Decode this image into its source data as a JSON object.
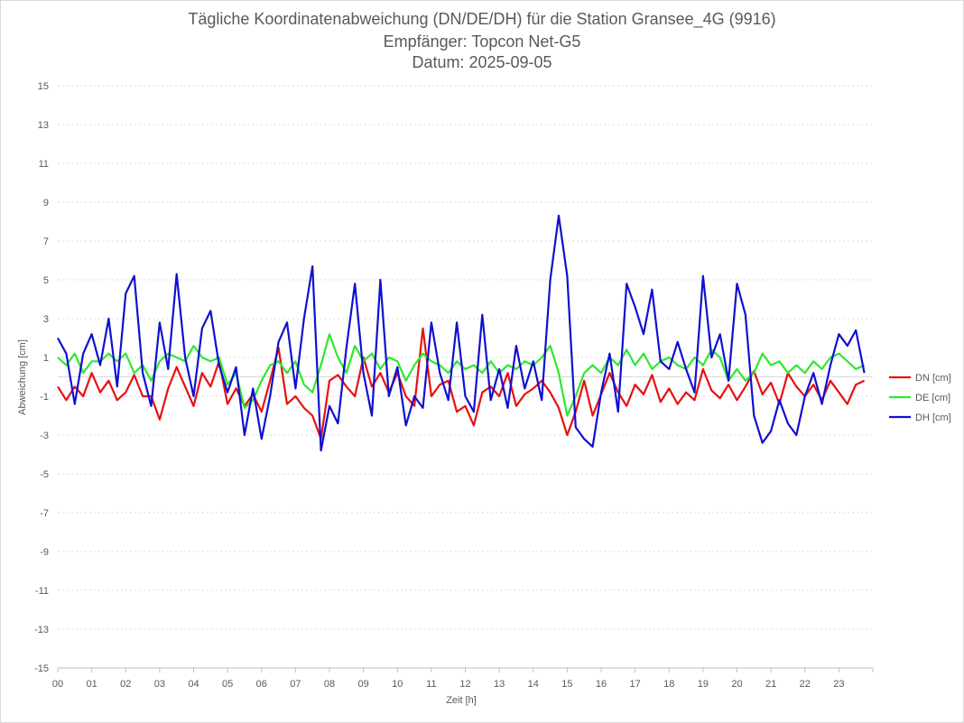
{
  "chart_data": {
    "type": "line",
    "title": "Tägliche Koordinatenabweichung (DN/DE/DH) für die Station Gransee_4G (9916)",
    "subtitle_1": "Empfänger: Topcon Net-G5",
    "subtitle_2": "Datum: 2025-09-05",
    "xlabel": "Zeit [h]",
    "ylabel": "Abweichung [cm]",
    "xlim": [
      0,
      24
    ],
    "ylim": [
      -15,
      15
    ],
    "x_tick_labels": [
      "00",
      "01",
      "02",
      "03",
      "04",
      "05",
      "06",
      "07",
      "08",
      "09",
      "10",
      "11",
      "12",
      "13",
      "14",
      "15",
      "16",
      "17",
      "18",
      "19",
      "20",
      "21",
      "22",
      "23"
    ],
    "y_ticks": [
      15,
      13,
      11,
      9,
      7,
      5,
      3,
      1,
      -1,
      -3,
      -5,
      -7,
      -9,
      -11,
      -13,
      -15
    ],
    "grid": true,
    "legend_position": "right",
    "series": [
      {
        "name": "DN [cm]",
        "color": "#e81010",
        "points": [
          [
            0,
            -0.5
          ],
          [
            0.25,
            -1.2
          ],
          [
            0.5,
            -0.5
          ],
          [
            0.75,
            -1.0
          ],
          [
            1.0,
            0.2
          ],
          [
            1.25,
            -0.8
          ],
          [
            1.5,
            -0.2
          ],
          [
            1.75,
            -1.2
          ],
          [
            2.0,
            -0.8
          ],
          [
            2.25,
            0.1
          ],
          [
            2.5,
            -1.0
          ],
          [
            2.75,
            -1.0
          ],
          [
            3.0,
            -2.2
          ],
          [
            3.25,
            -0.6
          ],
          [
            3.5,
            0.5
          ],
          [
            3.75,
            -0.5
          ],
          [
            4.0,
            -1.5
          ],
          [
            4.25,
            0.2
          ],
          [
            4.5,
            -0.5
          ],
          [
            4.75,
            0.8
          ],
          [
            5.0,
            -1.4
          ],
          [
            5.25,
            -0.6
          ],
          [
            5.5,
            -1.5
          ],
          [
            5.75,
            -0.9
          ],
          [
            6.0,
            -1.8
          ],
          [
            6.25,
            -0.2
          ],
          [
            6.5,
            1.5
          ],
          [
            6.75,
            -1.4
          ],
          [
            7.0,
            -1.0
          ],
          [
            7.25,
            -1.6
          ],
          [
            7.5,
            -2.0
          ],
          [
            7.75,
            -3.2
          ],
          [
            8.0,
            -0.2
          ],
          [
            8.25,
            0.1
          ],
          [
            8.5,
            -0.5
          ],
          [
            8.75,
            -1.0
          ],
          [
            9.0,
            1.0
          ],
          [
            9.25,
            -0.5
          ],
          [
            9.5,
            0.2
          ],
          [
            9.75,
            -0.8
          ],
          [
            10.0,
            0.2
          ],
          [
            10.25,
            -1.0
          ],
          [
            10.5,
            -1.5
          ],
          [
            10.75,
            2.5
          ],
          [
            11.0,
            -1.0
          ],
          [
            11.25,
            -0.4
          ],
          [
            11.5,
            -0.2
          ],
          [
            11.75,
            -1.8
          ],
          [
            12.0,
            -1.5
          ],
          [
            12.25,
            -2.5
          ],
          [
            12.5,
            -0.8
          ],
          [
            12.75,
            -0.5
          ],
          [
            13.0,
            -1.0
          ],
          [
            13.25,
            0.2
          ],
          [
            13.5,
            -1.5
          ],
          [
            13.75,
            -0.9
          ],
          [
            14.0,
            -0.6
          ],
          [
            14.25,
            -0.2
          ],
          [
            14.5,
            -0.8
          ],
          [
            14.75,
            -1.6
          ],
          [
            15.0,
            -3.0
          ],
          [
            15.25,
            -1.8
          ],
          [
            15.5,
            -0.2
          ],
          [
            15.75,
            -2.0
          ],
          [
            16.0,
            -0.9
          ],
          [
            16.25,
            0.2
          ],
          [
            16.5,
            -0.8
          ],
          [
            16.75,
            -1.5
          ],
          [
            17.0,
            -0.4
          ],
          [
            17.25,
            -0.9
          ],
          [
            17.5,
            0.1
          ],
          [
            17.75,
            -1.3
          ],
          [
            18.0,
            -0.6
          ],
          [
            18.25,
            -1.4
          ],
          [
            18.5,
            -0.8
          ],
          [
            18.75,
            -1.2
          ],
          [
            19.0,
            0.4
          ],
          [
            19.25,
            -0.7
          ],
          [
            19.5,
            -1.1
          ],
          [
            19.75,
            -0.4
          ],
          [
            20.0,
            -1.2
          ],
          [
            20.25,
            -0.5
          ],
          [
            20.5,
            0.3
          ],
          [
            20.75,
            -0.9
          ],
          [
            21.0,
            -0.3
          ],
          [
            21.25,
            -1.4
          ],
          [
            21.5,
            0.2
          ],
          [
            21.75,
            -0.5
          ],
          [
            22.0,
            -1.0
          ],
          [
            22.25,
            -0.4
          ],
          [
            22.5,
            -1.2
          ],
          [
            22.75,
            -0.2
          ],
          [
            23.0,
            -0.8
          ],
          [
            23.25,
            -1.4
          ],
          [
            23.5,
            -0.4
          ],
          [
            23.75,
            -0.2
          ]
        ]
      },
      {
        "name": "DE [cm]",
        "color": "#2ee82e",
        "points": [
          [
            0,
            1.0
          ],
          [
            0.25,
            0.6
          ],
          [
            0.5,
            1.2
          ],
          [
            0.75,
            0.2
          ],
          [
            1.0,
            0.8
          ],
          [
            1.25,
            0.8
          ],
          [
            1.5,
            1.2
          ],
          [
            1.75,
            0.8
          ],
          [
            2.0,
            1.2
          ],
          [
            2.25,
            0.2
          ],
          [
            2.5,
            0.6
          ],
          [
            2.75,
            -0.2
          ],
          [
            3.0,
            0.8
          ],
          [
            3.25,
            1.2
          ],
          [
            3.5,
            1.0
          ],
          [
            3.75,
            0.8
          ],
          [
            4.0,
            1.6
          ],
          [
            4.25,
            1.0
          ],
          [
            4.5,
            0.8
          ],
          [
            4.75,
            1.0
          ],
          [
            5.0,
            -0.4
          ],
          [
            5.25,
            0.2
          ],
          [
            5.5,
            -1.6
          ],
          [
            5.75,
            -1.2
          ],
          [
            6.0,
            -0.2
          ],
          [
            6.25,
            0.6
          ],
          [
            6.5,
            0.8
          ],
          [
            6.75,
            0.2
          ],
          [
            7.0,
            0.8
          ],
          [
            7.25,
            -0.4
          ],
          [
            7.5,
            -0.8
          ],
          [
            7.75,
            0.6
          ],
          [
            8.0,
            2.2
          ],
          [
            8.25,
            1.0
          ],
          [
            8.5,
            0.2
          ],
          [
            8.75,
            1.6
          ],
          [
            9.0,
            0.8
          ],
          [
            9.25,
            1.2
          ],
          [
            9.5,
            0.4
          ],
          [
            9.75,
            1.0
          ],
          [
            10.0,
            0.8
          ],
          [
            10.25,
            -0.2
          ],
          [
            10.5,
            0.6
          ],
          [
            10.75,
            1.2
          ],
          [
            11.0,
            0.8
          ],
          [
            11.25,
            0.6
          ],
          [
            11.5,
            0.2
          ],
          [
            11.75,
            0.8
          ],
          [
            12.0,
            0.4
          ],
          [
            12.25,
            0.6
          ],
          [
            12.5,
            0.2
          ],
          [
            12.75,
            0.8
          ],
          [
            13.0,
            0.2
          ],
          [
            13.25,
            0.6
          ],
          [
            13.5,
            0.4
          ],
          [
            13.75,
            0.8
          ],
          [
            14.0,
            0.6
          ],
          [
            14.25,
            1.0
          ],
          [
            14.5,
            1.6
          ],
          [
            14.75,
            0.2
          ],
          [
            15.0,
            -2.0
          ],
          [
            15.25,
            -1.0
          ],
          [
            15.5,
            0.2
          ],
          [
            15.75,
            0.6
          ],
          [
            16.0,
            0.2
          ],
          [
            16.25,
            1.0
          ],
          [
            16.5,
            0.6
          ],
          [
            16.75,
            1.4
          ],
          [
            17.0,
            0.6
          ],
          [
            17.25,
            1.2
          ],
          [
            17.5,
            0.4
          ],
          [
            17.75,
            0.8
          ],
          [
            18.0,
            1.0
          ],
          [
            18.25,
            0.6
          ],
          [
            18.5,
            0.4
          ],
          [
            18.75,
            1.0
          ],
          [
            19.0,
            0.6
          ],
          [
            19.25,
            1.4
          ],
          [
            19.5,
            1.0
          ],
          [
            19.75,
            -0.2
          ],
          [
            20.0,
            0.4
          ],
          [
            20.25,
            -0.2
          ],
          [
            20.5,
            0.2
          ],
          [
            20.75,
            1.2
          ],
          [
            21.0,
            0.6
          ],
          [
            21.25,
            0.8
          ],
          [
            21.5,
            0.2
          ],
          [
            21.75,
            0.6
          ],
          [
            22.0,
            0.2
          ],
          [
            22.25,
            0.8
          ],
          [
            22.5,
            0.4
          ],
          [
            22.75,
            1.0
          ],
          [
            23.0,
            1.2
          ],
          [
            23.25,
            0.8
          ],
          [
            23.5,
            0.4
          ],
          [
            23.75,
            0.6
          ]
        ]
      },
      {
        "name": "DH [cm]",
        "color": "#1010d0",
        "points": [
          [
            0,
            2.0
          ],
          [
            0.25,
            1.2
          ],
          [
            0.5,
            -1.4
          ],
          [
            0.75,
            1.2
          ],
          [
            1.0,
            2.2
          ],
          [
            1.25,
            0.6
          ],
          [
            1.5,
            3.0
          ],
          [
            1.75,
            -0.5
          ],
          [
            2.0,
            4.3
          ],
          [
            2.25,
            5.2
          ],
          [
            2.5,
            0.2
          ],
          [
            2.75,
            -1.5
          ],
          [
            3.0,
            2.8
          ],
          [
            3.25,
            0.4
          ],
          [
            3.5,
            5.3
          ],
          [
            3.75,
            1.0
          ],
          [
            4.0,
            -1.0
          ],
          [
            4.25,
            2.5
          ],
          [
            4.5,
            3.4
          ],
          [
            4.75,
            0.6
          ],
          [
            5.0,
            -0.8
          ],
          [
            5.25,
            0.5
          ],
          [
            5.5,
            -3.0
          ],
          [
            5.75,
            -0.6
          ],
          [
            6.0,
            -3.2
          ],
          [
            6.25,
            -1.0
          ],
          [
            6.5,
            1.8
          ],
          [
            6.75,
            2.8
          ],
          [
            7.0,
            -0.6
          ],
          [
            7.25,
            3.0
          ],
          [
            7.5,
            5.7
          ],
          [
            7.75,
            -3.8
          ],
          [
            8.0,
            -1.5
          ],
          [
            8.25,
            -2.4
          ],
          [
            8.5,
            1.5
          ],
          [
            8.75,
            4.8
          ],
          [
            9.0,
            0.2
          ],
          [
            9.25,
            -2.0
          ],
          [
            9.5,
            5.0
          ],
          [
            9.75,
            -1.0
          ],
          [
            10.0,
            0.5
          ],
          [
            10.25,
            -2.5
          ],
          [
            10.5,
            -1.0
          ],
          [
            10.75,
            -1.6
          ],
          [
            11.0,
            2.8
          ],
          [
            11.25,
            0.2
          ],
          [
            11.5,
            -1.2
          ],
          [
            11.75,
            2.8
          ],
          [
            12.0,
            -1.0
          ],
          [
            12.25,
            -1.8
          ],
          [
            12.5,
            3.2
          ],
          [
            12.75,
            -1.2
          ],
          [
            13.0,
            0.4
          ],
          [
            13.25,
            -1.6
          ],
          [
            13.5,
            1.6
          ],
          [
            13.75,
            -0.6
          ],
          [
            14.0,
            0.8
          ],
          [
            14.25,
            -1.2
          ],
          [
            14.5,
            5.0
          ],
          [
            14.75,
            8.3
          ],
          [
            15.0,
            5.2
          ],
          [
            15.25,
            -2.6
          ],
          [
            15.5,
            -3.2
          ],
          [
            15.75,
            -3.6
          ],
          [
            16.0,
            -0.8
          ],
          [
            16.25,
            1.2
          ],
          [
            16.5,
            -1.8
          ],
          [
            16.75,
            4.8
          ],
          [
            17.0,
            3.6
          ],
          [
            17.25,
            2.2
          ],
          [
            17.5,
            4.5
          ],
          [
            17.75,
            0.8
          ],
          [
            18.0,
            0.4
          ],
          [
            18.25,
            1.8
          ],
          [
            18.5,
            0.4
          ],
          [
            18.75,
            -0.8
          ],
          [
            19.0,
            5.2
          ],
          [
            19.25,
            1.0
          ],
          [
            19.5,
            2.2
          ],
          [
            19.75,
            -0.2
          ],
          [
            20.0,
            4.8
          ],
          [
            20.25,
            3.2
          ],
          [
            20.5,
            -2.0
          ],
          [
            20.75,
            -3.4
          ],
          [
            21.0,
            -2.8
          ],
          [
            21.25,
            -1.2
          ],
          [
            21.5,
            -2.4
          ],
          [
            21.75,
            -3.0
          ],
          [
            22.0,
            -1.0
          ],
          [
            22.25,
            0.2
          ],
          [
            22.5,
            -1.4
          ],
          [
            22.75,
            0.6
          ],
          [
            23.0,
            2.2
          ],
          [
            23.25,
            1.6
          ],
          [
            23.5,
            2.4
          ],
          [
            23.75,
            0.2
          ]
        ]
      }
    ]
  }
}
